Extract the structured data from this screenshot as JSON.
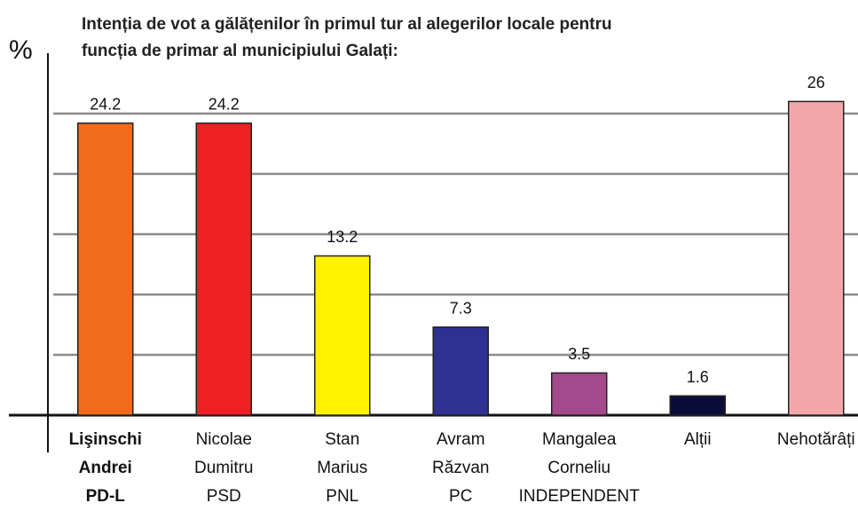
{
  "chart_data": {
    "type": "bar",
    "title": [
      "Intenția de vot a gălățenilor în primul tur al alegerilor locale pentru",
      "funcția de primar al municipiului Galați:"
    ],
    "y_label": "%",
    "categories": [
      [
        "Lişinschi",
        "Andrei",
        "PD-L"
      ],
      [
        "Nicolae",
        "Dumitru",
        "PSD"
      ],
      [
        "Stan",
        "Marius",
        "PNL"
      ],
      [
        "Avram",
        "Răzvan",
        "PC"
      ],
      [
        "Mangalea",
        "Corneliu",
        "INDEPENDENT"
      ],
      [
        "Alții"
      ],
      [
        "Nehotărâți"
      ]
    ],
    "values": [
      24.2,
      24.2,
      13.2,
      7.3,
      3.5,
      1.6,
      26
    ],
    "colors": [
      "#f26b1d",
      "#ee2024",
      "#fff200",
      "#2e3192",
      "#a3498c",
      "#0c0c3a",
      "#f4a7a9"
    ],
    "ylim": [
      0,
      30
    ],
    "yticks": [
      0,
      5,
      10,
      15,
      20,
      25
    ],
    "grid": true
  }
}
